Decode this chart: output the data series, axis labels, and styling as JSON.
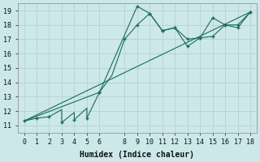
{
  "title": "",
  "xlabel": "Humidex (Indice chaleur)",
  "bg_color": "#cce8e8",
  "grid_color": "#b8d4d4",
  "line_color": "#1a6b5a",
  "xlim": [
    -0.5,
    18.5
  ],
  "ylim": [
    10.5,
    19.5
  ],
  "xticks": [
    0,
    1,
    2,
    3,
    4,
    5,
    6,
    8,
    9,
    10,
    11,
    12,
    13,
    14,
    15,
    16,
    17,
    18
  ],
  "yticks": [
    11,
    12,
    13,
    14,
    15,
    16,
    17,
    18,
    19
  ],
  "line1_x": [
    0,
    1,
    2,
    3,
    3,
    4,
    4,
    5,
    5,
    6,
    7,
    8,
    9,
    10,
    11,
    12,
    13,
    14,
    15,
    16,
    17,
    18
  ],
  "line1_y": [
    11.3,
    11.5,
    11.6,
    12.1,
    11.2,
    11.9,
    11.4,
    12.2,
    11.5,
    13.3,
    14.5,
    17.0,
    18.0,
    18.8,
    17.6,
    17.8,
    17.0,
    17.1,
    18.5,
    18.0,
    17.8,
    18.9
  ],
  "line1_markers_x": [
    0,
    1,
    2,
    3,
    4,
    5,
    6,
    8,
    9,
    10,
    11,
    12,
    13,
    14,
    15,
    16,
    17,
    18
  ],
  "line1_markers_y": [
    11.3,
    11.5,
    11.6,
    11.2,
    11.4,
    11.5,
    13.3,
    17.0,
    18.0,
    18.8,
    17.6,
    17.8,
    17.0,
    17.1,
    18.5,
    18.0,
    17.8,
    18.9
  ],
  "line2_x": [
    0,
    6,
    9,
    10,
    11,
    12,
    13,
    14,
    15,
    16,
    17,
    18
  ],
  "line2_y": [
    11.3,
    13.3,
    19.3,
    18.8,
    17.6,
    17.8,
    16.5,
    17.1,
    17.2,
    18.0,
    18.0,
    18.9
  ],
  "line2_markers_x": [
    6,
    9,
    10,
    11,
    12,
    13,
    14,
    15,
    16,
    17,
    18
  ],
  "line2_markers_y": [
    13.3,
    19.3,
    18.8,
    17.6,
    17.8,
    16.5,
    17.1,
    17.2,
    18.0,
    18.0,
    18.9
  ],
  "trend_x": [
    0,
    18
  ],
  "trend_y": [
    11.3,
    18.9
  ]
}
